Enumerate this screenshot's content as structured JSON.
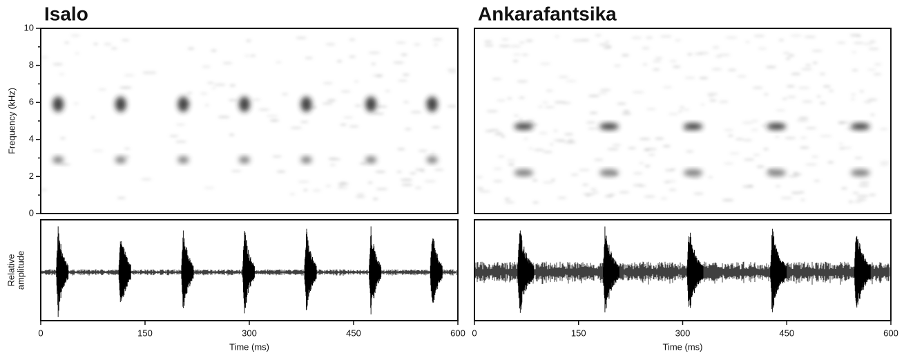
{
  "chart_data": [
    {
      "type": "spectrogram",
      "title": "Isalo",
      "y_label": "Frequency (kHz)",
      "amplitude_label": [
        "Relative",
        "amplitude"
      ],
      "x_label": "Time (ms)",
      "xlim": [
        0,
        600
      ],
      "xticks": [
        0,
        150,
        300,
        450,
        600
      ],
      "ylim": [
        0,
        10
      ],
      "yticks": [
        0,
        2,
        4,
        6,
        8,
        10
      ],
      "yminor_ticks": [
        1,
        3,
        5,
        7,
        9
      ],
      "call_times": [
        25,
        115,
        205,
        293,
        382,
        475,
        563
      ],
      "call_frequencies": [
        5.9,
        2.9
      ]
    },
    {
      "type": "spectrogram",
      "title": "Ankarafantsika",
      "x_label": "Time (ms)",
      "xlim": [
        0,
        600
      ],
      "xticks": [
        0,
        150,
        300,
        450,
        600
      ],
      "ylim": [
        0,
        10
      ],
      "call_times": [
        65,
        188,
        309,
        429,
        550
      ],
      "call_frequencies": [
        4.7,
        2.2
      ]
    }
  ]
}
